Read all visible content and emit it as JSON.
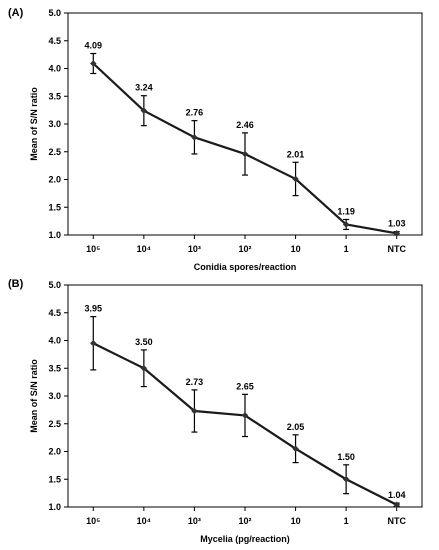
{
  "chart_data": [
    {
      "type": "line",
      "panel_label": "(A)",
      "categories": [
        "10⁵",
        "10⁴",
        "10³",
        "10²",
        "10",
        "1",
        "NTC"
      ],
      "values": [
        4.09,
        3.24,
        2.76,
        2.46,
        2.01,
        1.19,
        1.03
      ],
      "errors": [
        0.18,
        0.27,
        0.3,
        0.38,
        0.3,
        0.09,
        0.03
      ],
      "data_labels": [
        "4.09",
        "3.24",
        "2.76",
        "2.46",
        "2.01",
        "1.19",
        "1.03"
      ],
      "xlabel": "Conidia spores/reaction",
      "ylabel": "Mean of S/N ratio",
      "ylim": [
        1.0,
        5.0
      ],
      "yticks": [
        "1.0",
        "1.5",
        "2.0",
        "2.5",
        "3.0",
        "3.5",
        "4.0",
        "4.5",
        "5.0"
      ],
      "grid": false,
      "line_color": "#1a1a1a"
    },
    {
      "type": "line",
      "panel_label": "(B)",
      "categories": [
        "10⁵",
        "10⁴",
        "10³",
        "10²",
        "10",
        "1",
        "NTC"
      ],
      "values": [
        3.95,
        3.5,
        2.73,
        2.65,
        2.05,
        1.5,
        1.04
      ],
      "errors": [
        0.48,
        0.33,
        0.38,
        0.38,
        0.25,
        0.26,
        0.03
      ],
      "data_labels": [
        "3.95",
        "3.50",
        "2.73",
        "2.65",
        "2.05",
        "1.50",
        "1.04"
      ],
      "xlabel": "Mycelia (pg/reaction)",
      "ylabel": "Mean of S/N ratio",
      "ylim": [
        1.0,
        5.0
      ],
      "yticks": [
        "1.0",
        "1.5",
        "2.0",
        "2.5",
        "3.0",
        "3.5",
        "4.0",
        "4.5",
        "5.0"
      ],
      "grid": false,
      "line_color": "#1a1a1a"
    }
  ]
}
